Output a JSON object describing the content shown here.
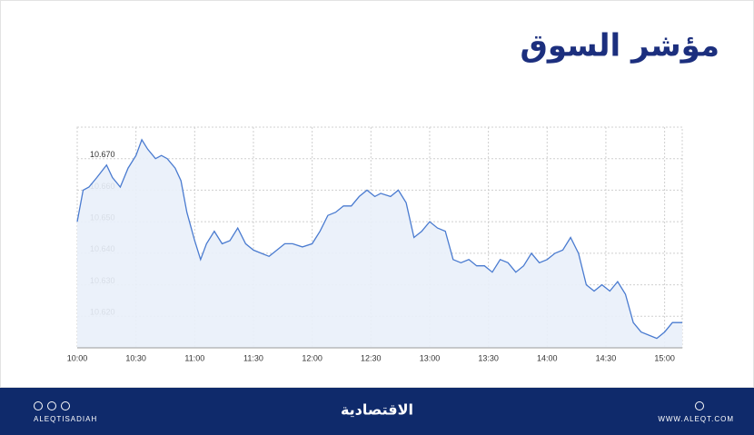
{
  "chart_data": {
    "type": "line",
    "title": "مؤشر السوق",
    "x": [
      600,
      603,
      606,
      610,
      615,
      618,
      622,
      626,
      630,
      633,
      636,
      640,
      643,
      646,
      650,
      653,
      656,
      660,
      663,
      666,
      670,
      674,
      678,
      682,
      686,
      690,
      694,
      698,
      702,
      706,
      710,
      715,
      720,
      724,
      728,
      732,
      736,
      740,
      744,
      748,
      752,
      755,
      760,
      764,
      768,
      772,
      776,
      780,
      784,
      788,
      792,
      796,
      800,
      804,
      808,
      812,
      816,
      820,
      824,
      828,
      832,
      836,
      840,
      844,
      848,
      852,
      856,
      860,
      864,
      868,
      872,
      876,
      880,
      884,
      888,
      892,
      896,
      900,
      904,
      909
    ],
    "values": [
      10.65,
      10.66,
      10.661,
      10.664,
      10.668,
      10.664,
      10.661,
      10.667,
      10.671,
      10.676,
      10.673,
      10.67,
      10.671,
      10.67,
      10.667,
      10.663,
      10.653,
      10.644,
      10.638,
      10.643,
      10.647,
      10.643,
      10.644,
      10.648,
      10.643,
      10.641,
      10.64,
      10.639,
      10.641,
      10.643,
      10.643,
      10.642,
      10.643,
      10.647,
      10.652,
      10.653,
      10.655,
      10.655,
      10.658,
      10.66,
      10.658,
      10.659,
      10.658,
      10.66,
      10.656,
      10.645,
      10.647,
      10.65,
      10.648,
      10.647,
      10.638,
      10.637,
      10.638,
      10.636,
      10.636,
      10.634,
      10.638,
      10.637,
      10.634,
      10.636,
      10.64,
      10.637,
      10.638,
      10.64,
      10.641,
      10.645,
      10.64,
      10.63,
      10.628,
      10.63,
      10.628,
      10.631,
      10.627,
      10.618,
      10.615,
      10.614,
      10.613,
      10.615,
      10.618,
      10.618
    ],
    "color": "#4a7bd0",
    "xlim": [
      600,
      909
    ],
    "xticks": [
      {
        "value": 600,
        "label": "10:00"
      },
      {
        "value": 630,
        "label": "10:30"
      },
      {
        "value": 660,
        "label": "11:00"
      },
      {
        "value": 690,
        "label": "11:30"
      },
      {
        "value": 720,
        "label": "12:00"
      },
      {
        "value": 750,
        "label": "12:30"
      },
      {
        "value": 780,
        "label": "13:00"
      },
      {
        "value": 810,
        "label": "13:30"
      },
      {
        "value": 840,
        "label": "14:00"
      },
      {
        "value": 870,
        "label": "14:30"
      },
      {
        "value": 900,
        "label": "15:00"
      }
    ],
    "ylim": [
      10.61,
      10.68
    ],
    "yticks": [
      {
        "value": 10.62,
        "label": "10.620"
      },
      {
        "value": 10.63,
        "label": "10.630"
      },
      {
        "value": 10.64,
        "label": "10.640"
      },
      {
        "value": 10.65,
        "label": "10.650"
      },
      {
        "value": 10.66,
        "label": "10.660"
      },
      {
        "value": 10.67,
        "label": "10.670"
      }
    ],
    "grid": true
  },
  "footer": {
    "handle": "ALEQTISADIAH",
    "brand": "الاقتصادية",
    "website": "WWW.ALEQT.COM"
  }
}
